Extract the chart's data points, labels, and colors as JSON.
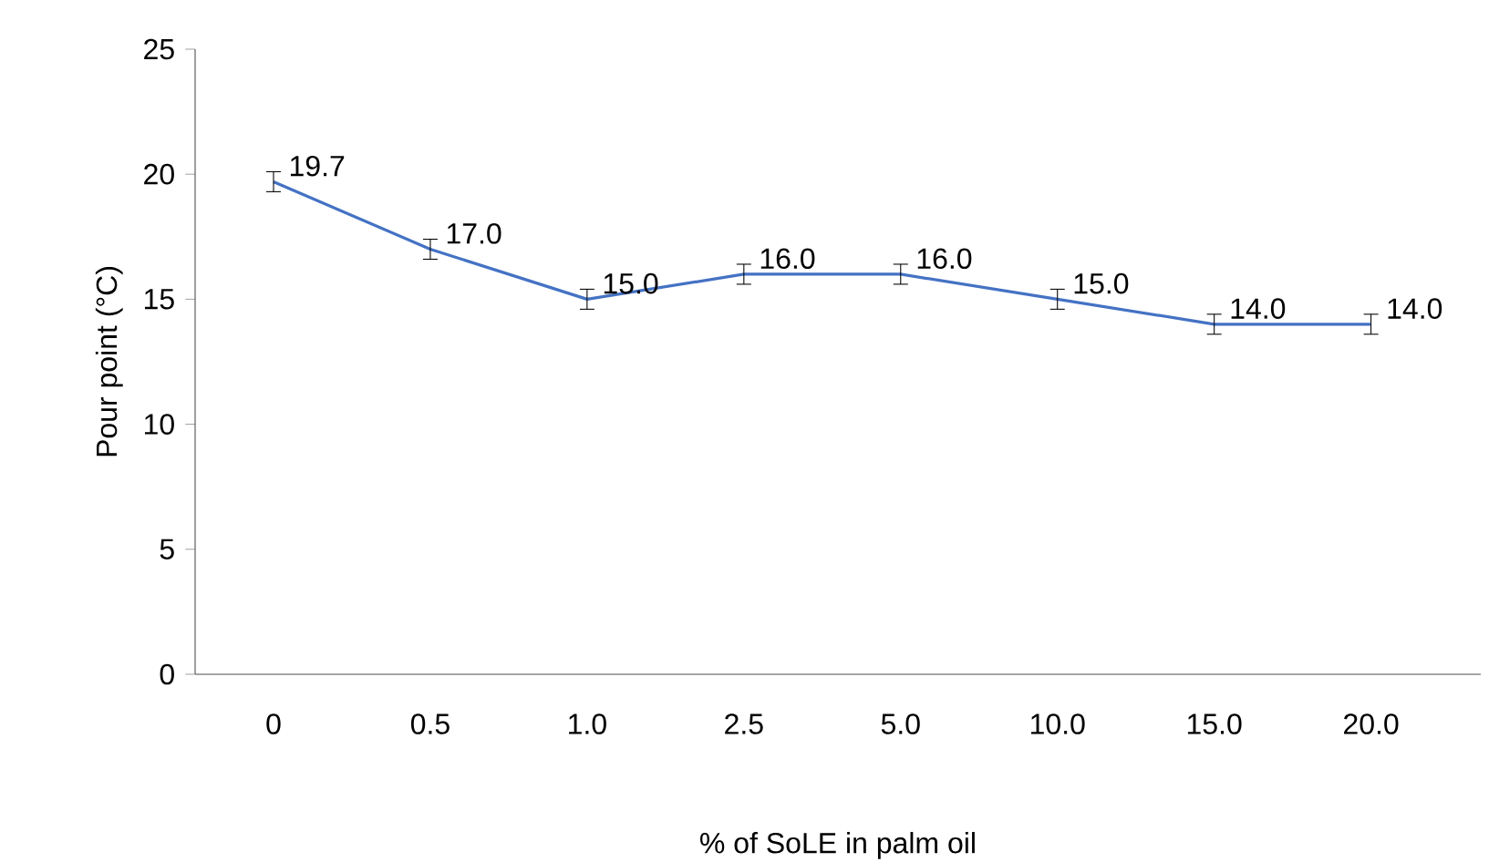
{
  "chart_data": {
    "type": "line",
    "xlabel": "% of SoLE in palm oil",
    "ylabel": "Pour point (°C)",
    "categories": [
      "0",
      "0.5",
      "1.0",
      "2.5",
      "5.0",
      "10.0",
      "15.0",
      "20.0"
    ],
    "series": [
      {
        "color": "#4472c4",
        "values": [
          19.7,
          17.0,
          15.0,
          16.0,
          16.0,
          15.0,
          14.0,
          14.0
        ],
        "errors": [
          0.4,
          0.4,
          0.4,
          0.4,
          0.4,
          0.4,
          0.4,
          0.4
        ],
        "value_labels": [
          "19.7",
          "17.0",
          "15.0",
          "16.0",
          "16.0",
          "15.0",
          "14.0",
          "14.0"
        ]
      }
    ],
    "ylim": [
      0,
      25
    ],
    "yticks": [
      0,
      5,
      10,
      15,
      20,
      25
    ],
    "grid": false,
    "marker": "none",
    "line_style": "solid"
  }
}
